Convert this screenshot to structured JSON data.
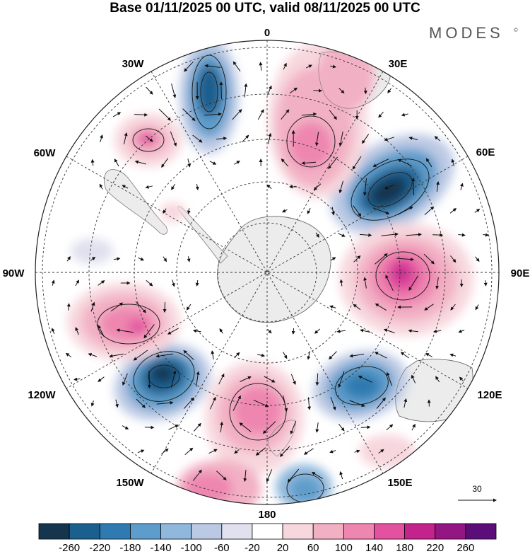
{
  "title": "Base 01/11/2025 00 UTC, valid 08/11/2025 00 UTC",
  "brand": {
    "name": "MODES",
    "mark": "©"
  },
  "longitude_labels": {
    "lon_0": "0",
    "lon_30e": "30E",
    "lon_60e": "60E",
    "lon_90e": "90E",
    "lon_120e": "120E",
    "lon_150e": "150E",
    "lon_180": "180",
    "lon_150w": "150W",
    "lon_120w": "120W",
    "lon_90w": "90W",
    "lon_60w": "60W",
    "lon_30w": "30W"
  },
  "reference_vector": {
    "label": "30"
  },
  "colorbar": {
    "colors": [
      "#15354f",
      "#1b5f8e",
      "#2f7ab0",
      "#5d9ccb",
      "#8fb8dc",
      "#bcc9e4",
      "#e0e0ef",
      "#ffffff",
      "#f7d7dd",
      "#f2b0c4",
      "#ee86b0",
      "#e2529f",
      "#c4228d",
      "#931683",
      "#5b0e77"
    ],
    "tick_labels": [
      "-260",
      "-220",
      "-180",
      "-140",
      "-100",
      "-60",
      "-20",
      "20",
      "60",
      "100",
      "140",
      "180",
      "220",
      "260"
    ]
  },
  "colors": {
    "land": "#ececec",
    "grid": "#333333",
    "coast": "#666666"
  }
}
